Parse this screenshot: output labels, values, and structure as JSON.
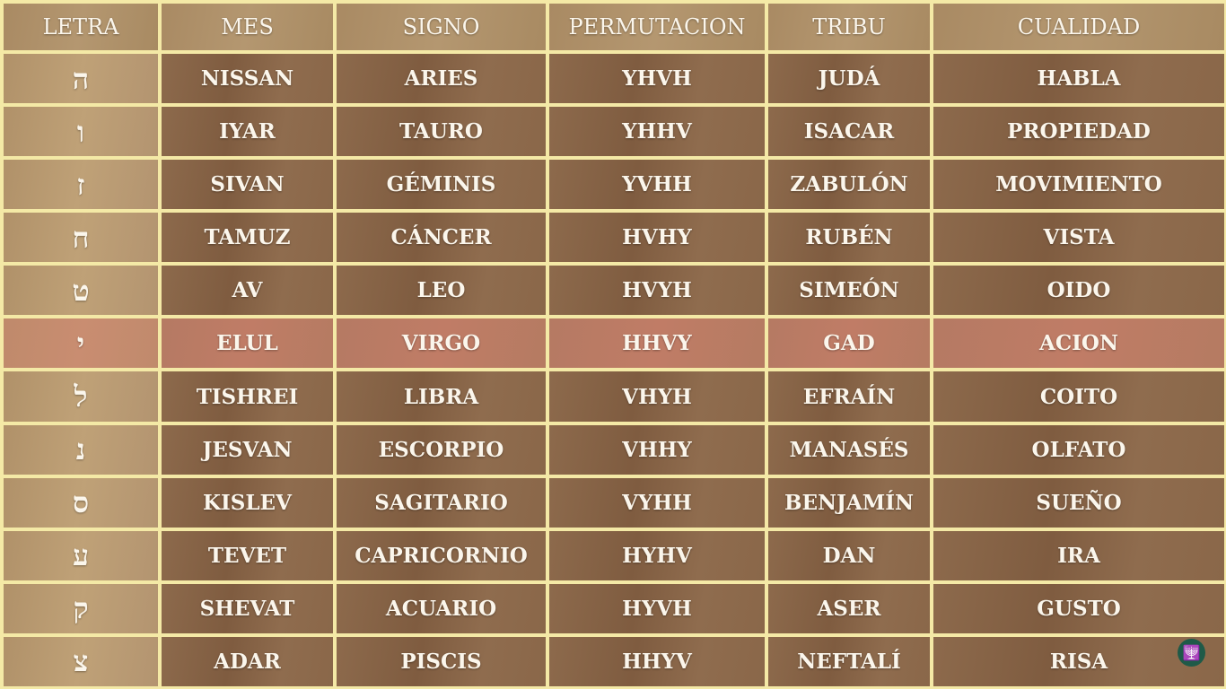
{
  "headers": [
    "LETRA",
    "MES",
    "SIGNO",
    "PERMUTACION",
    "TRIBU",
    "CUALIDAD"
  ],
  "rows": [
    [
      "ה",
      "NISSAN",
      "ARIES",
      "YHVH",
      "JUDÁ",
      "HABLA"
    ],
    [
      "ו",
      "IYAR",
      "TAURO",
      "YHHV",
      "ISACAR",
      "PROPIEDAD"
    ],
    [
      "ז",
      "SIVAN",
      "GÉMINIS",
      "YVHH",
      "ZABULÓN",
      "MOVIMIENTO"
    ],
    [
      "ח",
      "TAMUZ",
      "CÁNCER",
      "HVHY",
      "RUBÉN",
      "VISTA"
    ],
    [
      "ט",
      "AV",
      "LEO",
      "HVYH",
      "SIMEÓN",
      "OIDO"
    ],
    [
      "י",
      "ELUL",
      "VIRGO",
      "HHVY",
      "GAD",
      "ACION"
    ],
    [
      "ל",
      "TISHREI",
      "LIBRA",
      "VHYH",
      "EFRAÍN",
      "COITO"
    ],
    [
      "נ",
      "JESVAN",
      "ESCORPIO",
      "VHHY",
      "MANASÉS",
      "OLFATO"
    ],
    [
      "ס",
      "KISLEV",
      "SAGITARIO",
      "VYHH",
      "BENJAMÍN",
      "SUEÑO"
    ],
    [
      "ע",
      "TEVET",
      "CAPRICORNIO",
      "HYHV",
      "DAN",
      "IRA"
    ],
    [
      "ק",
      "SHEVAT",
      "ACUARIO",
      "HYVH",
      "ASER",
      "GUSTO"
    ],
    [
      "צ",
      "ADAR",
      "PISCIS",
      "HHYV",
      "NEFTALÍ",
      "RISA"
    ]
  ],
  "highlighted_row": 5,
  "colors": {
    "border": "#f4e9a6",
    "cell": "#8a6749",
    "letter_cell": "#b89a70",
    "highlight": "#bd7b64"
  },
  "logo_icon": "menorah-logo"
}
